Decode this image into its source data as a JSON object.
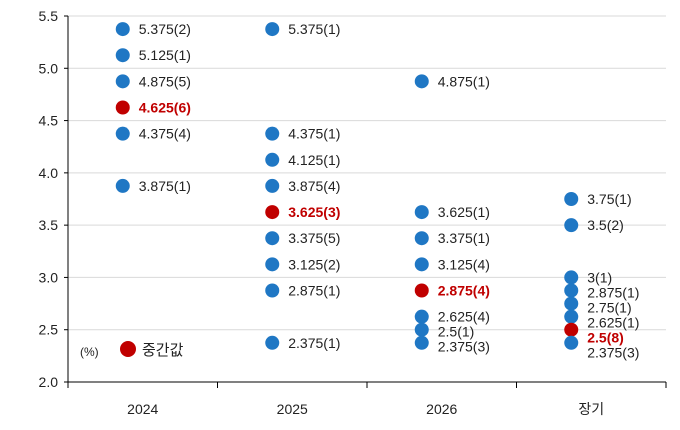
{
  "chart_data": {
    "type": "scatter",
    "categories": [
      "2024",
      "2025",
      "2026",
      "장기"
    ],
    "ylim": [
      2.0,
      5.5
    ],
    "yticks": [
      "2.0",
      "2.5",
      "3.0",
      "3.5",
      "4.0",
      "4.5",
      "5.0",
      "5.5"
    ],
    "unit_label": "(%)",
    "legend": {
      "label": "중간값",
      "color": "#c00000"
    },
    "colors": {
      "dot": "#1f77c4",
      "median": "#c00000",
      "grid": "#d9d9d9",
      "axis": "#000000"
    },
    "grid": true,
    "series": [
      {
        "category": "2024",
        "points": [
          {
            "y": 5.375,
            "label": "5.375(2)",
            "median": false
          },
          {
            "y": 5.125,
            "label": "5.125(1)",
            "median": false
          },
          {
            "y": 4.875,
            "label": "4.875(5)",
            "median": false
          },
          {
            "y": 4.625,
            "label": "4.625(6)",
            "median": true
          },
          {
            "y": 4.375,
            "label": "4.375(4)",
            "median": false
          },
          {
            "y": 3.875,
            "label": "3.875(1)",
            "median": false
          }
        ]
      },
      {
        "category": "2025",
        "points": [
          {
            "y": 5.375,
            "label": "5.375(1)",
            "median": false
          },
          {
            "y": 4.375,
            "label": "4.375(1)",
            "median": false
          },
          {
            "y": 4.125,
            "label": "4.125(1)",
            "median": false
          },
          {
            "y": 3.875,
            "label": "3.875(4)",
            "median": false
          },
          {
            "y": 3.625,
            "label": "3.625(3)",
            "median": true
          },
          {
            "y": 3.375,
            "label": "3.375(5)",
            "median": false
          },
          {
            "y": 3.125,
            "label": "3.125(2)",
            "median": false
          },
          {
            "y": 2.875,
            "label": "2.875(1)",
            "median": false
          },
          {
            "y": 2.375,
            "label": "2.375(1)",
            "median": false
          }
        ]
      },
      {
        "category": "2026",
        "points": [
          {
            "y": 4.875,
            "label": "4.875(1)",
            "median": false
          },
          {
            "y": 3.625,
            "label": "3.625(1)",
            "median": false
          },
          {
            "y": 3.375,
            "label": "3.375(1)",
            "median": false
          },
          {
            "y": 3.125,
            "label": "3.125(4)",
            "median": false
          },
          {
            "y": 2.875,
            "label": "2.875(4)",
            "median": true
          },
          {
            "y": 2.625,
            "label": "2.625(4)",
            "median": false
          },
          {
            "y": 2.5,
            "label": "2.5(1)",
            "median": false
          },
          {
            "y": 2.375,
            "label": "2.375(3)",
            "median": false
          }
        ]
      },
      {
        "category": "장기",
        "points": [
          {
            "y": 3.75,
            "label": "3.75(1)",
            "median": false
          },
          {
            "y": 3.5,
            "label": "3.5(2)",
            "median": false
          },
          {
            "y": 3.0,
            "label": "3(1)",
            "median": false
          },
          {
            "y": 2.875,
            "label": "2.875(1)",
            "median": false
          },
          {
            "y": 2.75,
            "label": "2.75(1)",
            "median": false
          },
          {
            "y": 2.625,
            "label": "2.625(1)",
            "median": false
          },
          {
            "y": 2.5,
            "label": "2.5(8)",
            "median": true
          },
          {
            "y": 2.375,
            "label": "2.375(3)",
            "median": false
          }
        ]
      }
    ]
  }
}
